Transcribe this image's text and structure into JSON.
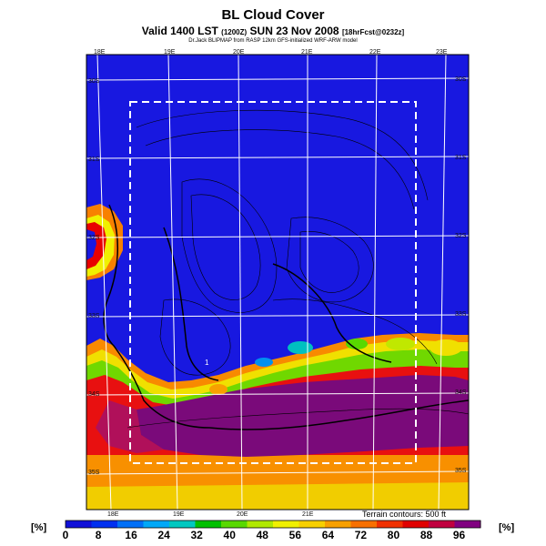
{
  "header": {
    "title": "BL Cloud Cover",
    "subtitle_main": "Valid 1400 LST",
    "subtitle_code": "(1200Z)",
    "subtitle_date": "SUN 23 Nov 2008",
    "subtitle_fcst": "[18hrFcst@0232z]",
    "credit": "Dr.Jack BLIPMAP from RASP 12km GFS-initialized WRF-ARW model"
  },
  "map_labels": {
    "top": [
      "18E",
      "19E",
      "20E",
      "21E",
      "22E",
      "23E"
    ],
    "bottom": [
      "18E",
      "19E",
      "20E",
      "21E"
    ],
    "left": [
      "30S",
      "31S",
      "32S",
      "33S",
      "34S",
      "35S"
    ],
    "right": [
      "30S",
      "31S",
      "32S",
      "33S",
      "34S",
      "35S"
    ],
    "terrain_note": "Terrain contours: 500 ft",
    "marker": "1"
  },
  "legend": {
    "unit_left": "[%]",
    "unit_right": "[%]",
    "ticks": [
      "0",
      "8",
      "16",
      "24",
      "32",
      "40",
      "48",
      "56",
      "64",
      "72",
      "80",
      "88",
      "96"
    ],
    "colors": [
      "#1010d8",
      "#0030f0",
      "#0070f8",
      "#00a8f8",
      "#00c8c0",
      "#00c000",
      "#58d800",
      "#b0e800",
      "#f0f000",
      "#f8d000",
      "#f8a000",
      "#f87000",
      "#f03000",
      "#e00000",
      "#c00040",
      "#800080"
    ]
  }
}
